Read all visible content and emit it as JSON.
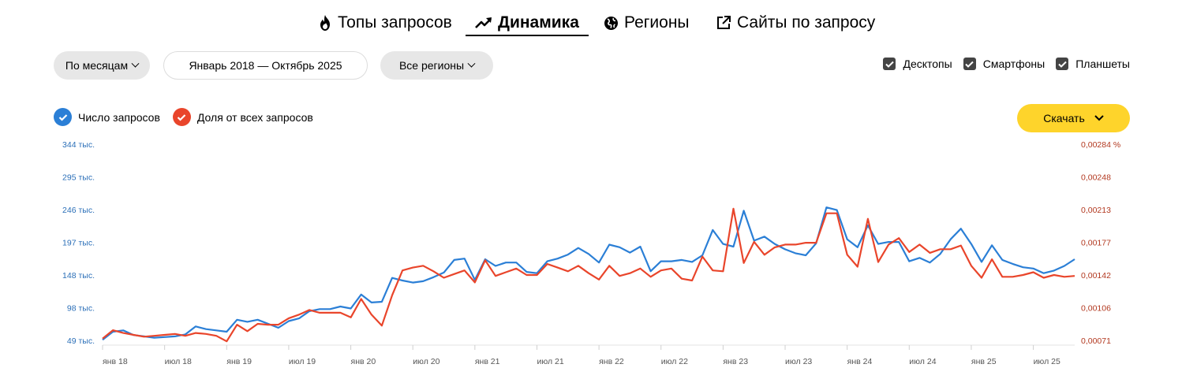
{
  "tabs": [
    {
      "label": "Топы запросов",
      "icon": "fire-icon"
    },
    {
      "label": "Динамика",
      "icon": "trend-up-icon"
    },
    {
      "label": "Регионы",
      "icon": "globe-icon"
    },
    {
      "label": "Сайты по запросу",
      "icon": "external-link-icon"
    }
  ],
  "controls": {
    "period": "По месяцам",
    "date_range": "Январь 2018 — Октябрь 2025",
    "regions": "Все регионы"
  },
  "devices": [
    "Десктопы",
    "Смартфоны",
    "Планшеты"
  ],
  "legend": [
    "Число запросов",
    "Доля от всех запросов"
  ],
  "download_label": "Скачать",
  "colors": {
    "blue": "#2b7fd6",
    "red": "#e9452b",
    "accent": "#fed42b"
  },
  "chart_data": {
    "type": "line",
    "xticks": [
      "янв 18",
      "июл 18",
      "янв 19",
      "июл 19",
      "янв 20",
      "июл 20",
      "янв 21",
      "июл 21",
      "янв 22",
      "июл 22",
      "янв 23",
      "июл 23",
      "янв 24",
      "июл 24",
      "янв 25",
      "июл 25"
    ],
    "y_left_ticks": [
      "344 тыс.",
      "295 тыс.",
      "246 тыс.",
      "197 тыс.",
      "148 тыс.",
      "98 тыс.",
      "49 тыс."
    ],
    "y_right_ticks": [
      "0,00284 %",
      "0,00248",
      "0,00213",
      "0,00177",
      "0,00142",
      "0,00106",
      "0,00071"
    ],
    "ylim_left": [
      49,
      344
    ],
    "ylim_right": [
      0.00071,
      0.00284
    ],
    "series": [
      {
        "name": "Число запросов",
        "color": "#2b7fd6",
        "values": [
          50,
          62,
          64,
          57,
          55,
          53,
          54,
          55,
          58,
          70,
          66,
          64,
          62,
          80,
          77,
          80,
          74,
          68,
          78,
          82,
          93,
          96,
          96,
          100,
          97,
          118,
          106,
          107,
          143,
          139,
          136,
          138,
          144,
          151,
          170,
          172,
          140,
          171,
          161,
          166,
          166,
          152,
          150,
          168,
          172,
          178,
          188,
          179,
          166,
          193,
          189,
          181,
          190,
          153,
          168,
          168,
          170,
          167,
          177,
          215,
          194,
          190,
          244,
          199,
          205,
          194,
          186,
          180,
          177,
          195,
          249,
          245,
          201,
          189,
          222,
          194,
          197,
          197,
          168,
          173,
          166,
          179,
          201,
          217,
          194,
          167,
          192,
          170,
          164,
          159,
          157,
          150,
          154,
          161,
          171
        ]
      },
      {
        "name": "Доля от всех запросов",
        "color": "#e9452b",
        "values": [
          0.00073,
          0.00082,
          0.00079,
          0.00077,
          0.00075,
          0.00076,
          0.00077,
          0.00078,
          0.00076,
          0.00079,
          0.00078,
          0.00076,
          0.0007,
          0.00088,
          0.00081,
          0.00089,
          0.00088,
          0.00088,
          0.00095,
          0.00099,
          0.00104,
          0.00101,
          0.00101,
          0.00101,
          0.00096,
          0.00116,
          0.00099,
          0.00087,
          0.0012,
          0.00147,
          0.0015,
          0.00152,
          0.00146,
          0.00139,
          0.00143,
          0.00147,
          0.00134,
          0.00158,
          0.00141,
          0.00145,
          0.00149,
          0.00142,
          0.00142,
          0.00154,
          0.0015,
          0.00146,
          0.00152,
          0.00144,
          0.00137,
          0.00152,
          0.00141,
          0.00144,
          0.00149,
          0.0014,
          0.00147,
          0.00149,
          0.00138,
          0.00136,
          0.00162,
          0.00147,
          0.00146,
          0.00214,
          0.00155,
          0.00178,
          0.00164,
          0.00172,
          0.00175,
          0.00175,
          0.00177,
          0.00177,
          0.00209,
          0.00209,
          0.00164,
          0.00151,
          0.00203,
          0.00156,
          0.00175,
          0.00182,
          0.00167,
          0.00175,
          0.00166,
          0.0017,
          0.0017,
          0.00174,
          0.00152,
          0.00139,
          0.00159,
          0.0014,
          0.0014,
          0.00142,
          0.00145,
          0.00139,
          0.00142,
          0.0014,
          0.00141
        ]
      }
    ]
  }
}
